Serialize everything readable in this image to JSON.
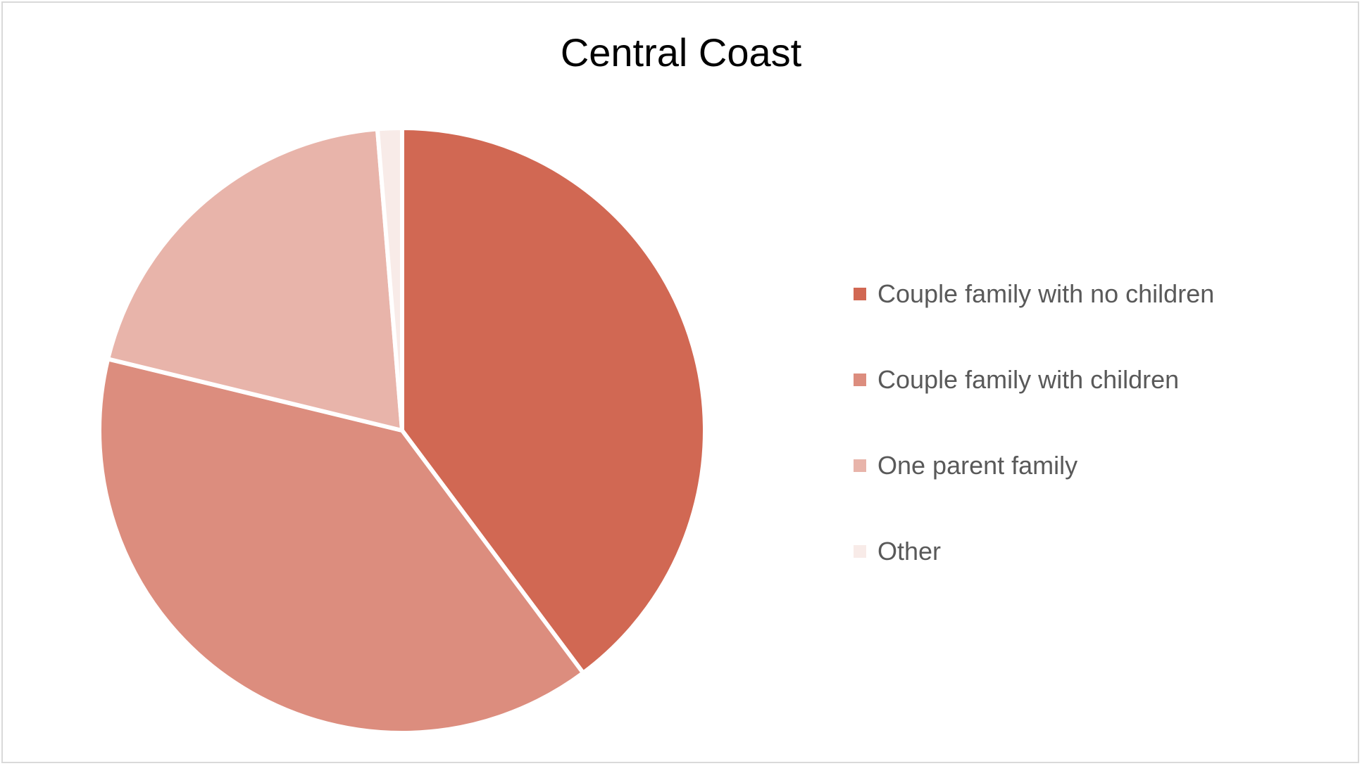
{
  "chart_data": {
    "type": "pie",
    "title": "Central Coast",
    "legend_position": "right",
    "start_angle_deg": 0,
    "direction": "clockwise",
    "slices": [
      {
        "label": "Couple family with no children",
        "value": 39.8,
        "color": "#d16853"
      },
      {
        "label": "Couple family with children",
        "value": 39.0,
        "color": "#dc8d7e"
      },
      {
        "label": "One parent family",
        "value": 19.9,
        "color": "#e8b4aa"
      },
      {
        "label": "Other",
        "value": 1.3,
        "color": "#f8ebe8"
      }
    ]
  }
}
